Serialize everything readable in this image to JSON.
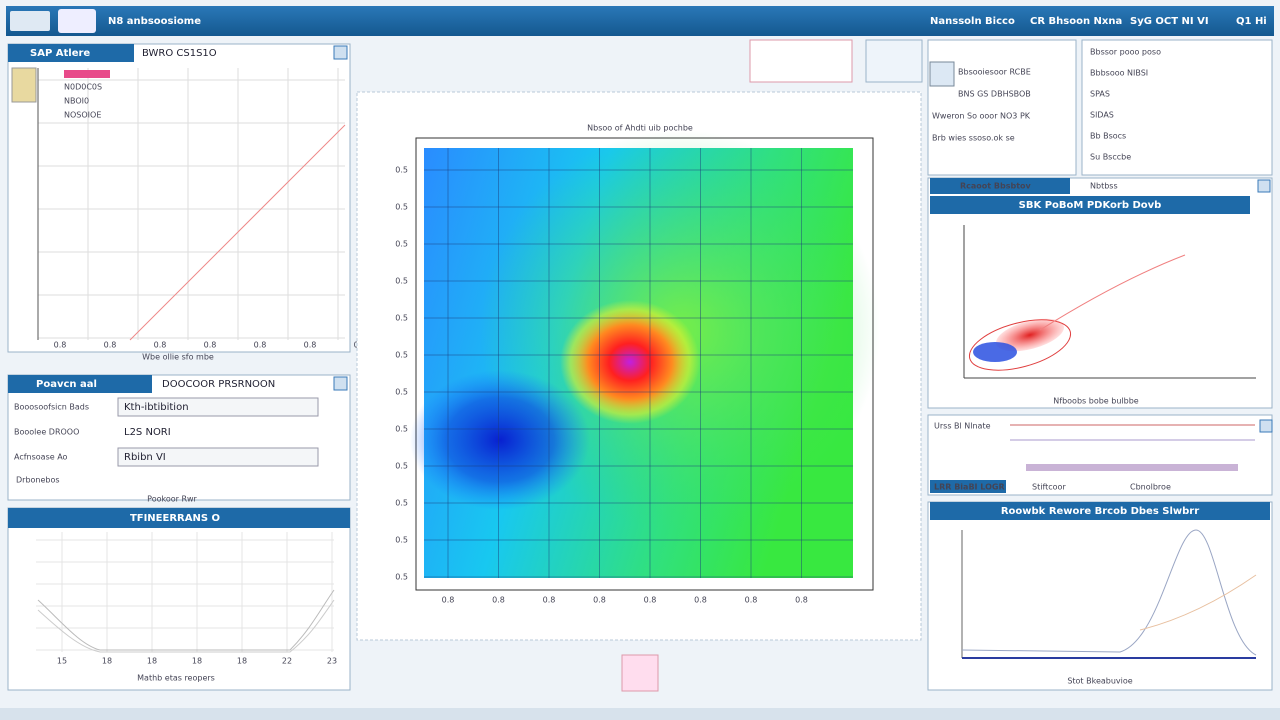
{
  "titlebar": {
    "title": "N8 anbsoosiome",
    "right": [
      "Nanssoln Bicco",
      "CR Bhsoon Nxna",
      "SyG OCT NI VI",
      "Q1 Hi"
    ]
  },
  "left_top": {
    "tab": "SAP Atlere",
    "heading": "BWRO CS1S1O",
    "legend": [
      "N0D0C0S",
      "NBOI0",
      "NOSOIOE"
    ],
    "x_label": "Wbe ollie sfo mbe",
    "x_ticks": [
      "0.8",
      "0.8",
      "0.8",
      "0.8",
      "0.8",
      "0.8",
      "0.8"
    ]
  },
  "left_form": {
    "tab": "Poavcn aal",
    "heading": "DOOCOOR PRSRNOON",
    "rows": [
      {
        "label": "Booosoofsicn Bads",
        "value": "Kth-ibtibition"
      },
      {
        "label": "Booolee DROOO",
        "value": "L2S NORI"
      },
      {
        "label": "Acfnsoase Ao",
        "value": "Rbibn VI"
      }
    ],
    "note": "Drbonebos",
    "footer": "Pookoor Rwr"
  },
  "left_bottom": {
    "title": "TFINEERRANS O",
    "x_label": "Mathb etas reopers",
    "x_ticks": [
      "15",
      "18",
      "18",
      "18",
      "18",
      "22",
      "23"
    ]
  },
  "heatmap": {
    "title": "Nbsoo of Ahdti uib pochbe",
    "x_ticks": [
      "0.8",
      "0.8",
      "0.8",
      "0.8",
      "0.8",
      "0.8",
      "0.8",
      "0.8"
    ],
    "y_ticks": [
      "0.5",
      "0.5",
      "0.5",
      "0.5",
      "0.5",
      "0.5",
      "0.5",
      "0.5",
      "0.5",
      "0.5",
      "0.5",
      "0.5"
    ]
  },
  "right_list": {
    "left": [
      "Bbsooiesoor RCBE",
      "BNS GS DBHSBOB",
      "Wweron So ooor NO3 PK",
      "Brb wies ssoso.ok se"
    ],
    "right": [
      "Bbssor pooo poso",
      "Bbbsooo NIBSI",
      "SPAS",
      "SlDAS",
      "Bb Bsocs",
      "Su Bsccbe"
    ]
  },
  "right_scatter": {
    "tabs": [
      "Rcaoot Bbsbtov",
      "Nbtbss"
    ],
    "title": "SBK PoBoM PDKorb Dovb",
    "x_label": "Nfboobs bobe bulbbe"
  },
  "right_mid": {
    "label": "Urss Bl Nlnate",
    "tabs": [
      "LRR BiaBI LOGR",
      "Stiftcoor",
      "Cbnolbroe"
    ]
  },
  "right_line": {
    "title": "Roowbk Rewore Brcob Dbes Slwbrr",
    "x_label": "Stot Bkeabuvioe"
  }
}
